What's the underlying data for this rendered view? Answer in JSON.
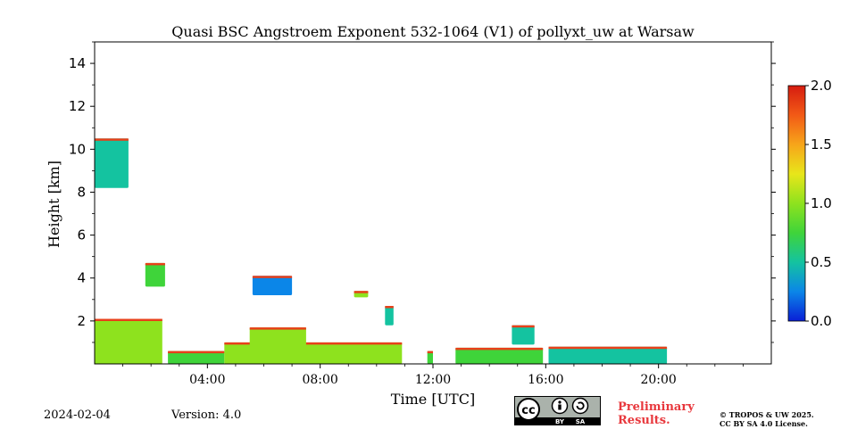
{
  "chart_data": {
    "type": "heatmap",
    "title": "Quasi BSC Angstroem Exponent 532-1064 (V1) of pollyxt_uw at Warsaw",
    "xlabel": "Time [UTC]",
    "ylabel": "Height [km]",
    "xlim_hours": [
      0,
      24
    ],
    "ylim_km": [
      0,
      15
    ],
    "x_ticks": [
      {
        "value": 4,
        "label": "04:00"
      },
      {
        "value": 8,
        "label": "08:00"
      },
      {
        "value": 12,
        "label": "12:00"
      },
      {
        "value": 16,
        "label": "16:00"
      },
      {
        "value": 20,
        "label": "20:00"
      }
    ],
    "y_ticks": [
      {
        "value": 2,
        "label": "2"
      },
      {
        "value": 4,
        "label": "4"
      },
      {
        "value": 6,
        "label": "6"
      },
      {
        "value": 8,
        "label": "8"
      },
      {
        "value": 10,
        "label": "10"
      },
      {
        "value": 12,
        "label": "12"
      },
      {
        "value": 14,
        "label": "14"
      }
    ],
    "colorbar": {
      "range": [
        0.0,
        2.0
      ],
      "ticks": [
        {
          "value": 0.0,
          "label": "0.0"
        },
        {
          "value": 0.5,
          "label": "0.5"
        },
        {
          "value": 1.0,
          "label": "1.0"
        },
        {
          "value": 1.5,
          "label": "1.5"
        },
        {
          "value": 2.0,
          "label": "2.0"
        }
      ],
      "colormap": [
        "#0a1fd6",
        "#0b86e8",
        "#14c3a0",
        "#3fd43a",
        "#8ee21e",
        "#e8e61a",
        "#f7a51a",
        "#f25a16",
        "#d61c10"
      ]
    },
    "regions": [
      {
        "name": "boundary-layer-early",
        "t0": 0.0,
        "t1": 2.4,
        "h0": 0.0,
        "h1": 2.1,
        "value": 0.9
      },
      {
        "name": "boundary-layer-gap1",
        "t0": 2.6,
        "t1": 4.6,
        "h0": 0.0,
        "h1": 0.6,
        "value": 0.7
      },
      {
        "name": "boundary-layer-mid",
        "t0": 4.6,
        "t1": 10.9,
        "h0": 0.0,
        "h1": 1.0,
        "value": 0.9
      },
      {
        "name": "boundary-layer-morning-rise",
        "t0": 5.5,
        "t1": 7.5,
        "h0": 0.0,
        "h1": 1.7,
        "value": 1.1
      },
      {
        "name": "boundary-layer-noon",
        "t0": 11.8,
        "t1": 12.0,
        "h0": 0.0,
        "h1": 0.6,
        "value": 0.8
      },
      {
        "name": "boundary-layer-afternoon",
        "t0": 12.8,
        "t1": 15.9,
        "h0": 0.0,
        "h1": 0.75,
        "value": 0.8
      },
      {
        "name": "boundary-layer-evening",
        "t0": 16.1,
        "t1": 20.3,
        "h0": 0.0,
        "h1": 0.8,
        "value": 0.6
      },
      {
        "name": "cirrus-layer",
        "t0": 0.0,
        "t1": 1.2,
        "h0": 8.2,
        "h1": 10.5,
        "value": 0.4
      },
      {
        "name": "aerosol-plume-2h",
        "t0": 1.8,
        "t1": 2.5,
        "h0": 3.6,
        "h1": 4.7,
        "value": 0.8
      },
      {
        "name": "cloud-6h",
        "t0": 5.6,
        "t1": 7.0,
        "h0": 3.2,
        "h1": 4.1,
        "value": 0.3
      },
      {
        "name": "cloud-9h",
        "t0": 9.2,
        "t1": 9.7,
        "h0": 3.1,
        "h1": 3.4,
        "value": 0.9
      },
      {
        "name": "cloud-10h",
        "t0": 10.3,
        "t1": 10.6,
        "h0": 1.8,
        "h1": 2.7,
        "value": 0.5
      },
      {
        "name": "cloud-15h",
        "t0": 14.8,
        "t1": 15.6,
        "h0": 0.9,
        "h1": 1.8,
        "value": 0.5
      }
    ]
  },
  "footer": {
    "date": "2024-02-04",
    "version": "Version: 4.0",
    "preliminary_line1": "Preliminary",
    "preliminary_line2": "Results.",
    "copyright_line1": "© TROPOS & UW 2025.",
    "copyright_line2": "CC BY SA 4.0 License.",
    "cc_badge": {
      "by": "BY",
      "sa": "SA",
      "cc": "cc"
    }
  },
  "colors": {
    "preliminary": "#e8383d"
  }
}
